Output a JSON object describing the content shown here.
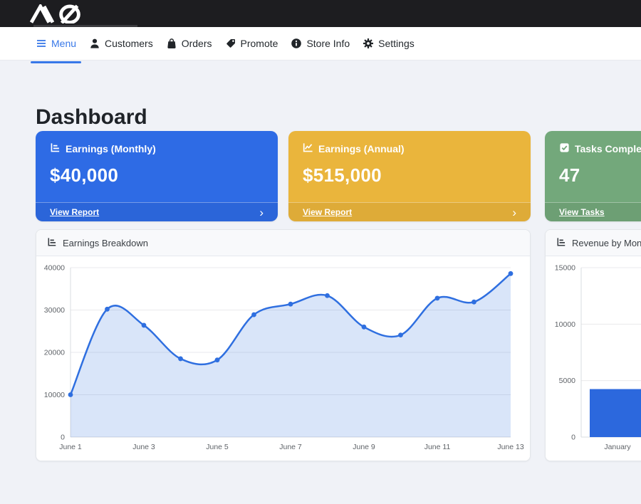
{
  "brand": {
    "name": "AQ"
  },
  "nav": {
    "items": [
      {
        "label": "Menu",
        "icon": "hamburger-icon",
        "active": true
      },
      {
        "label": "Customers",
        "icon": "person-icon",
        "active": false
      },
      {
        "label": "Orders",
        "icon": "shopping-bag-icon",
        "active": false
      },
      {
        "label": "Promote",
        "icon": "tag-icon",
        "active": false
      },
      {
        "label": "Store Info",
        "icon": "info-circle-icon",
        "active": false
      },
      {
        "label": "Settings",
        "icon": "gear-icon",
        "active": false
      }
    ]
  },
  "page": {
    "title": "Dashboard"
  },
  "colors": {
    "primary_blue": "#2e6be5",
    "nav_active_blue": "#3878e8",
    "warning_yellow": "#eab53c",
    "success_green": "#73a87b",
    "chart_line_blue": "#2f6fe0",
    "chart_bar_blue": "#2c68dd"
  },
  "stat_cards": [
    {
      "title": "Earnings (Monthly)",
      "value": "$40,000",
      "link_label": "View Report",
      "color": "#2e6be5",
      "icon": "chart-bar-icon"
    },
    {
      "title": "Earnings (Annual)",
      "value": "$515,000",
      "link_label": "View Report",
      "color": "#eab53c",
      "icon": "chart-line-icon"
    },
    {
      "title": "Tasks Completed",
      "value": "47",
      "link_label": "View Tasks",
      "color": "#73a87b",
      "icon": "check-square-icon"
    }
  ],
  "chart_data": [
    {
      "type": "area",
      "title": "Earnings Breakdown",
      "x": [
        "June 1",
        "June 2",
        "June 3",
        "June 4",
        "June 5",
        "June 6",
        "June 7",
        "June 8",
        "June 9",
        "June 10",
        "June 11",
        "June 12",
        "June 13"
      ],
      "values": [
        10000,
        30200,
        26400,
        18500,
        18200,
        28900,
        31400,
        33400,
        26000,
        24100,
        32800,
        31900,
        38600
      ],
      "xlabel": "",
      "ylabel": "",
      "ylim": [
        0,
        40000
      ],
      "yticks": [
        0,
        10000,
        20000,
        30000,
        40000
      ],
      "xtick_step": 2,
      "grid": true,
      "legend_position": "none",
      "line_color": "#2f6fe0",
      "fill_color": "rgba(47,111,224,0.18)"
    },
    {
      "type": "bar",
      "title": "Revenue by Month",
      "categories": [
        "January"
      ],
      "values": [
        4250
      ],
      "xlabel": "",
      "ylabel": "",
      "ylim": [
        0,
        15000
      ],
      "yticks": [
        0,
        5000,
        10000,
        15000
      ],
      "grid": true,
      "legend_position": "none",
      "bar_color": "#2c68dd"
    }
  ]
}
